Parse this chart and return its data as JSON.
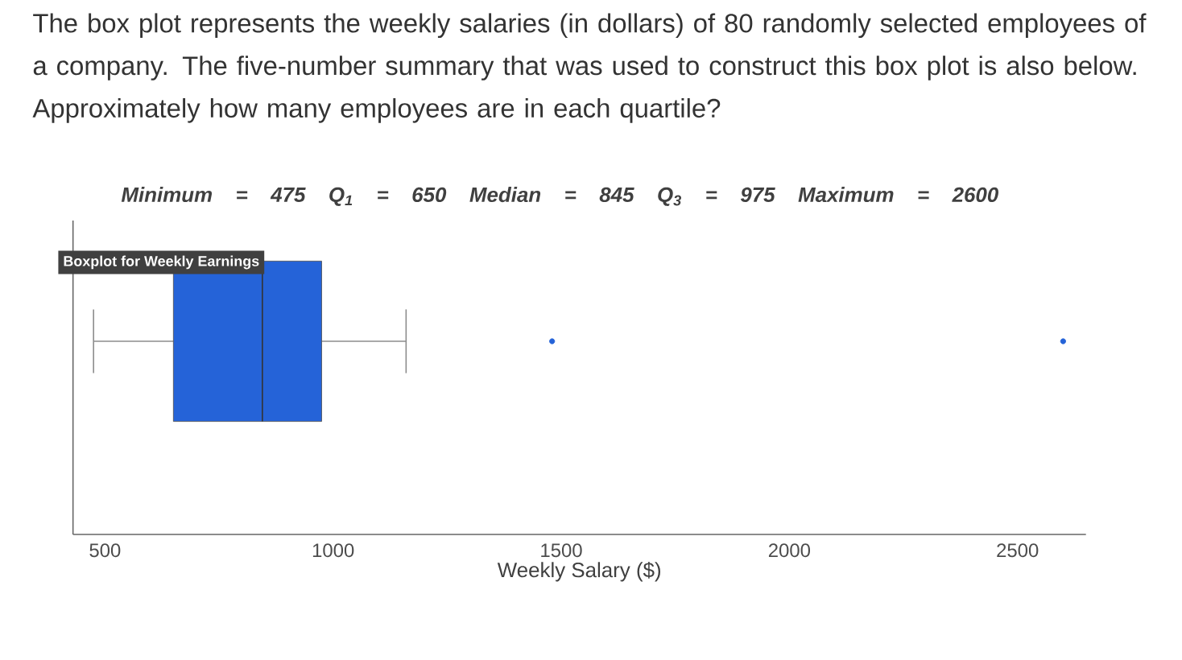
{
  "chart_data": {
    "type": "box",
    "title": "The box plot represents the weekly salaries (in dollars) of 80 randomly selected employees of a company. The five-number summary that was used to construct this box plot is also below. Approximately how many employees are in each quartile?",
    "subtitle": "Minimum = 475   Q$_{1}$ = 650   Median = 845   Q$_{3}$ = 975   Maximum = 2600",
    "annotations": [
      "Boxplot for Weekly Earnings"
    ],
    "xlabel": "Weekly Salary ($)",
    "orientation": "horizontal",
    "categories": [
      null
    ],
    "boxes": [
      {
        "low": 475,
        "q1": 650,
        "median": 845,
        "q3": 975,
        "high": 1160,
        "outliers": [
          1480,
          2600
        ]
      }
    ],
    "color": "#2563d8",
    "xlim": [
      430,
      2650
    ],
    "xticks": [
      500,
      1000,
      1500,
      2000,
      2500
    ],
    "tick_labels": "x"
  }
}
